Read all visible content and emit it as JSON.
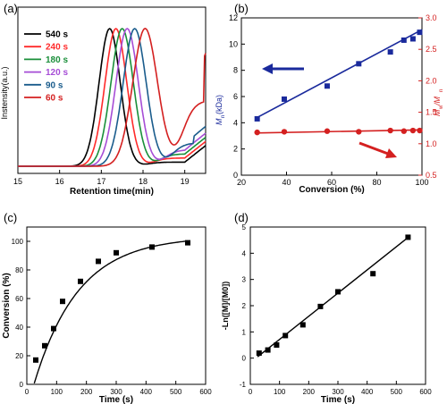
{
  "chart_data": [
    {
      "panel": "(a)",
      "type": "line",
      "xlabel": "Retention time(min)",
      "ylabel": "Instensity(a.u.)",
      "xlim": [
        15,
        19.5
      ],
      "xticks": [
        "15",
        "16",
        "17",
        "18",
        "19"
      ],
      "y_ticks_shown": false,
      "legend_position": "top-left",
      "series": [
        {
          "name": "540 s",
          "color": "#000000",
          "peak": 17.2,
          "w": 0.36,
          "tail": 0.03
        },
        {
          "name": "240 s",
          "color": "#ff2a2a",
          "peak": 17.35,
          "w": 0.37,
          "tail": 0.06
        },
        {
          "name": "180 s",
          "color": "#1a8f3a",
          "peak": 17.5,
          "w": 0.38,
          "tail": 0.09
        },
        {
          "name": "120 s",
          "color": "#a64dd6",
          "peak": 17.62,
          "w": 0.38,
          "tail": 0.12
        },
        {
          "name": "90 s",
          "color": "#1a5c8c",
          "peak": 17.8,
          "w": 0.39,
          "tail": 0.17
        },
        {
          "name": "60 s",
          "color": "#d42020",
          "peak": 18.05,
          "w": 0.42,
          "tail": 0.48
        }
      ]
    },
    {
      "panel": "(b)",
      "type": "scatter",
      "xlabel": "Conversion (%)",
      "ylabel_left": "Mn(kDa)",
      "ylabel_left_sub": "n",
      "ylabel_right": "Mw/Mn",
      "xlim": [
        20,
        100
      ],
      "xticks": [
        "20",
        "40",
        "60",
        "80",
        "100"
      ],
      "ylim_left": [
        0,
        12
      ],
      "yticks_left": [
        "0",
        "2",
        "4",
        "6",
        "8",
        "10",
        "12"
      ],
      "ylim_right": [
        0.5,
        3.0
      ],
      "yticks_right": [
        "0.5",
        "1.0",
        "1.5",
        "2.0",
        "2.5",
        "3.0"
      ],
      "left_color": "#1a2a9c",
      "right_color": "#d42020",
      "series": [
        {
          "name": "Mn",
          "axis": "left",
          "x": [
            27,
            39,
            58,
            72,
            86,
            92,
            96,
            99
          ],
          "y": [
            4.3,
            5.8,
            6.8,
            8.5,
            9.4,
            10.3,
            10.4,
            10.9
          ],
          "fit": [
            [
              27,
              4.4
            ],
            [
              100,
              11.1
            ]
          ]
        },
        {
          "name": "Mw/Mn",
          "axis": "right",
          "x": [
            27,
            39,
            58,
            72,
            86,
            92,
            96,
            99
          ],
          "y": [
            1.18,
            1.19,
            1.2,
            1.19,
            1.21,
            1.2,
            1.21,
            1.21
          ],
          "fit": [
            [
              26,
              1.17
            ],
            [
              100,
              1.22
            ]
          ]
        }
      ]
    },
    {
      "panel": "(c)",
      "type": "scatter",
      "xlabel": "Time (s)",
      "ylabel": "Conversion (%)",
      "xlim": [
        0,
        600
      ],
      "xticks": [
        "0",
        "100",
        "200",
        "300",
        "400",
        "500",
        "600"
      ],
      "ylim": [
        0,
        110
      ],
      "yticks": [
        "0",
        "20",
        "40",
        "60",
        "80",
        "100"
      ],
      "x": [
        30,
        60,
        90,
        120,
        180,
        240,
        300,
        420,
        540
      ],
      "y": [
        17,
        27,
        39,
        58,
        72,
        86,
        92,
        96,
        99
      ],
      "fit": {
        "model": "exponential",
        "ymax": 103.5,
        "k": 0.0067,
        "x0": 25
      }
    },
    {
      "panel": "(d)",
      "type": "scatter",
      "xlabel": "Time (s)",
      "ylabel": "-Ln([M]/[M0])",
      "xlim": [
        0,
        600
      ],
      "xticks": [
        "0",
        "100",
        "200",
        "300",
        "400",
        "500",
        "600"
      ],
      "ylim": [
        -1,
        5
      ],
      "yticks": [
        "-1",
        "0",
        "1",
        "2",
        "3",
        "4",
        "5"
      ],
      "x": [
        30,
        60,
        90,
        120,
        180,
        240,
        300,
        420,
        540
      ],
      "y": [
        0.19,
        0.31,
        0.5,
        0.86,
        1.27,
        1.97,
        2.53,
        3.22,
        4.61
      ],
      "fit": [
        [
          25,
          0.05
        ],
        [
          540,
          4.6
        ]
      ]
    }
  ]
}
